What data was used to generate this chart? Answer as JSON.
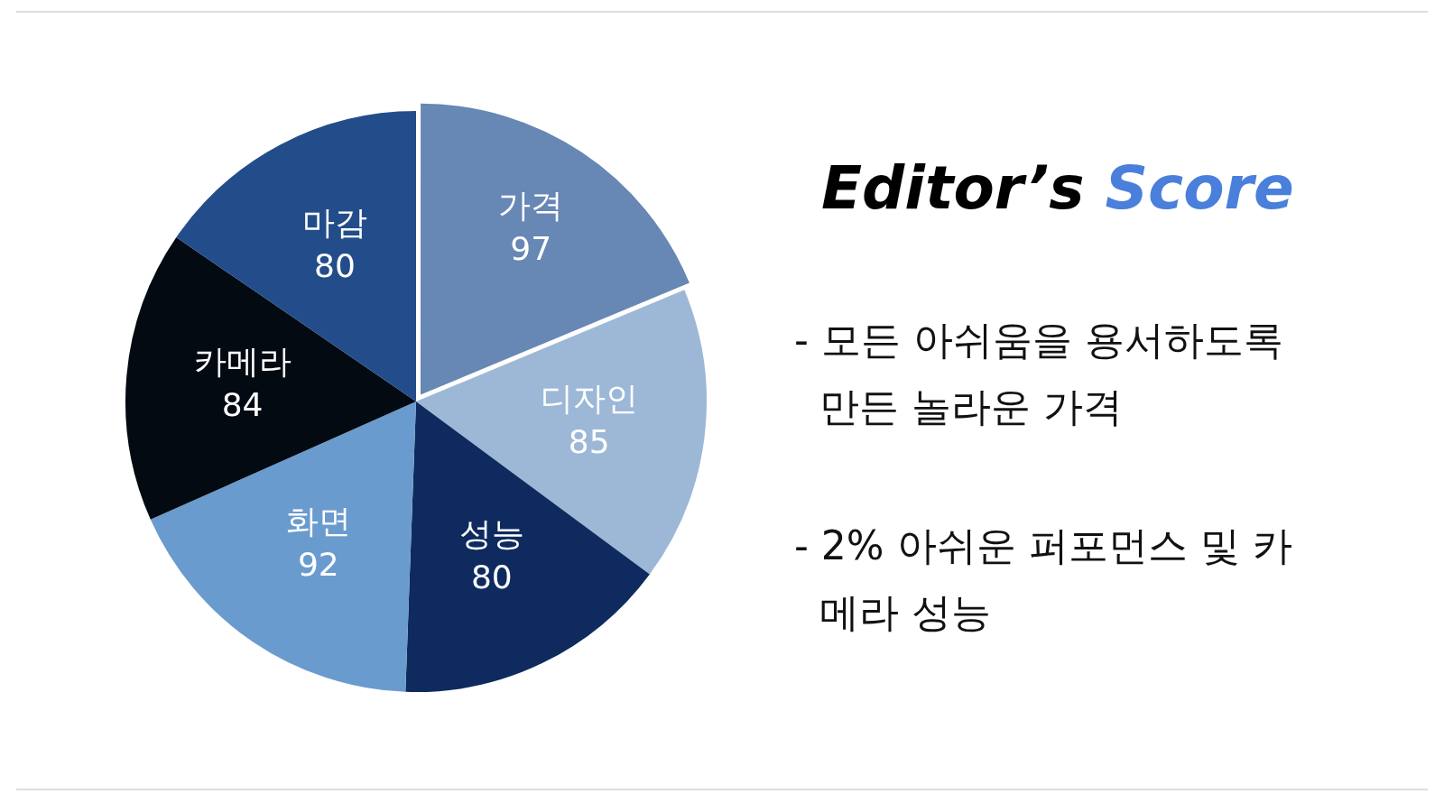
{
  "chart_data": {
    "type": "pie",
    "title": "Editor’s Score",
    "categories": [
      "가격",
      "디자인",
      "성능",
      "화면",
      "카메라",
      "마감"
    ],
    "values": [
      97,
      85,
      80,
      92,
      84,
      80
    ],
    "colors": [
      "#6787b5",
      "#9db8d7",
      "#0e2a5e",
      "#6a9bce",
      "#030a12",
      "#234d8a"
    ],
    "data_labels": true,
    "legend": false,
    "annotations": [
      "- 모든 아쉬움을 용서하도록 만든 놀라운 가격",
      "- 2% 아쉬운 퍼포먼스 및 카메라 성능"
    ]
  }
}
